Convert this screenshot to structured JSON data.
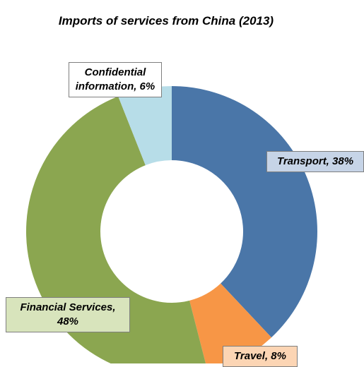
{
  "chart_data": {
    "type": "donut",
    "title": "Imports of services from China (2013)",
    "values": [
      38,
      8,
      48,
      6
    ],
    "value_labels": [
      "Transport, 38%",
      "Travel, 8%",
      "Financial Services, 48%",
      "Confidential information, 6%"
    ],
    "colors": [
      "#4a76a8",
      "#f79646",
      "#8ba650",
      "#b7dde8"
    ]
  }
}
